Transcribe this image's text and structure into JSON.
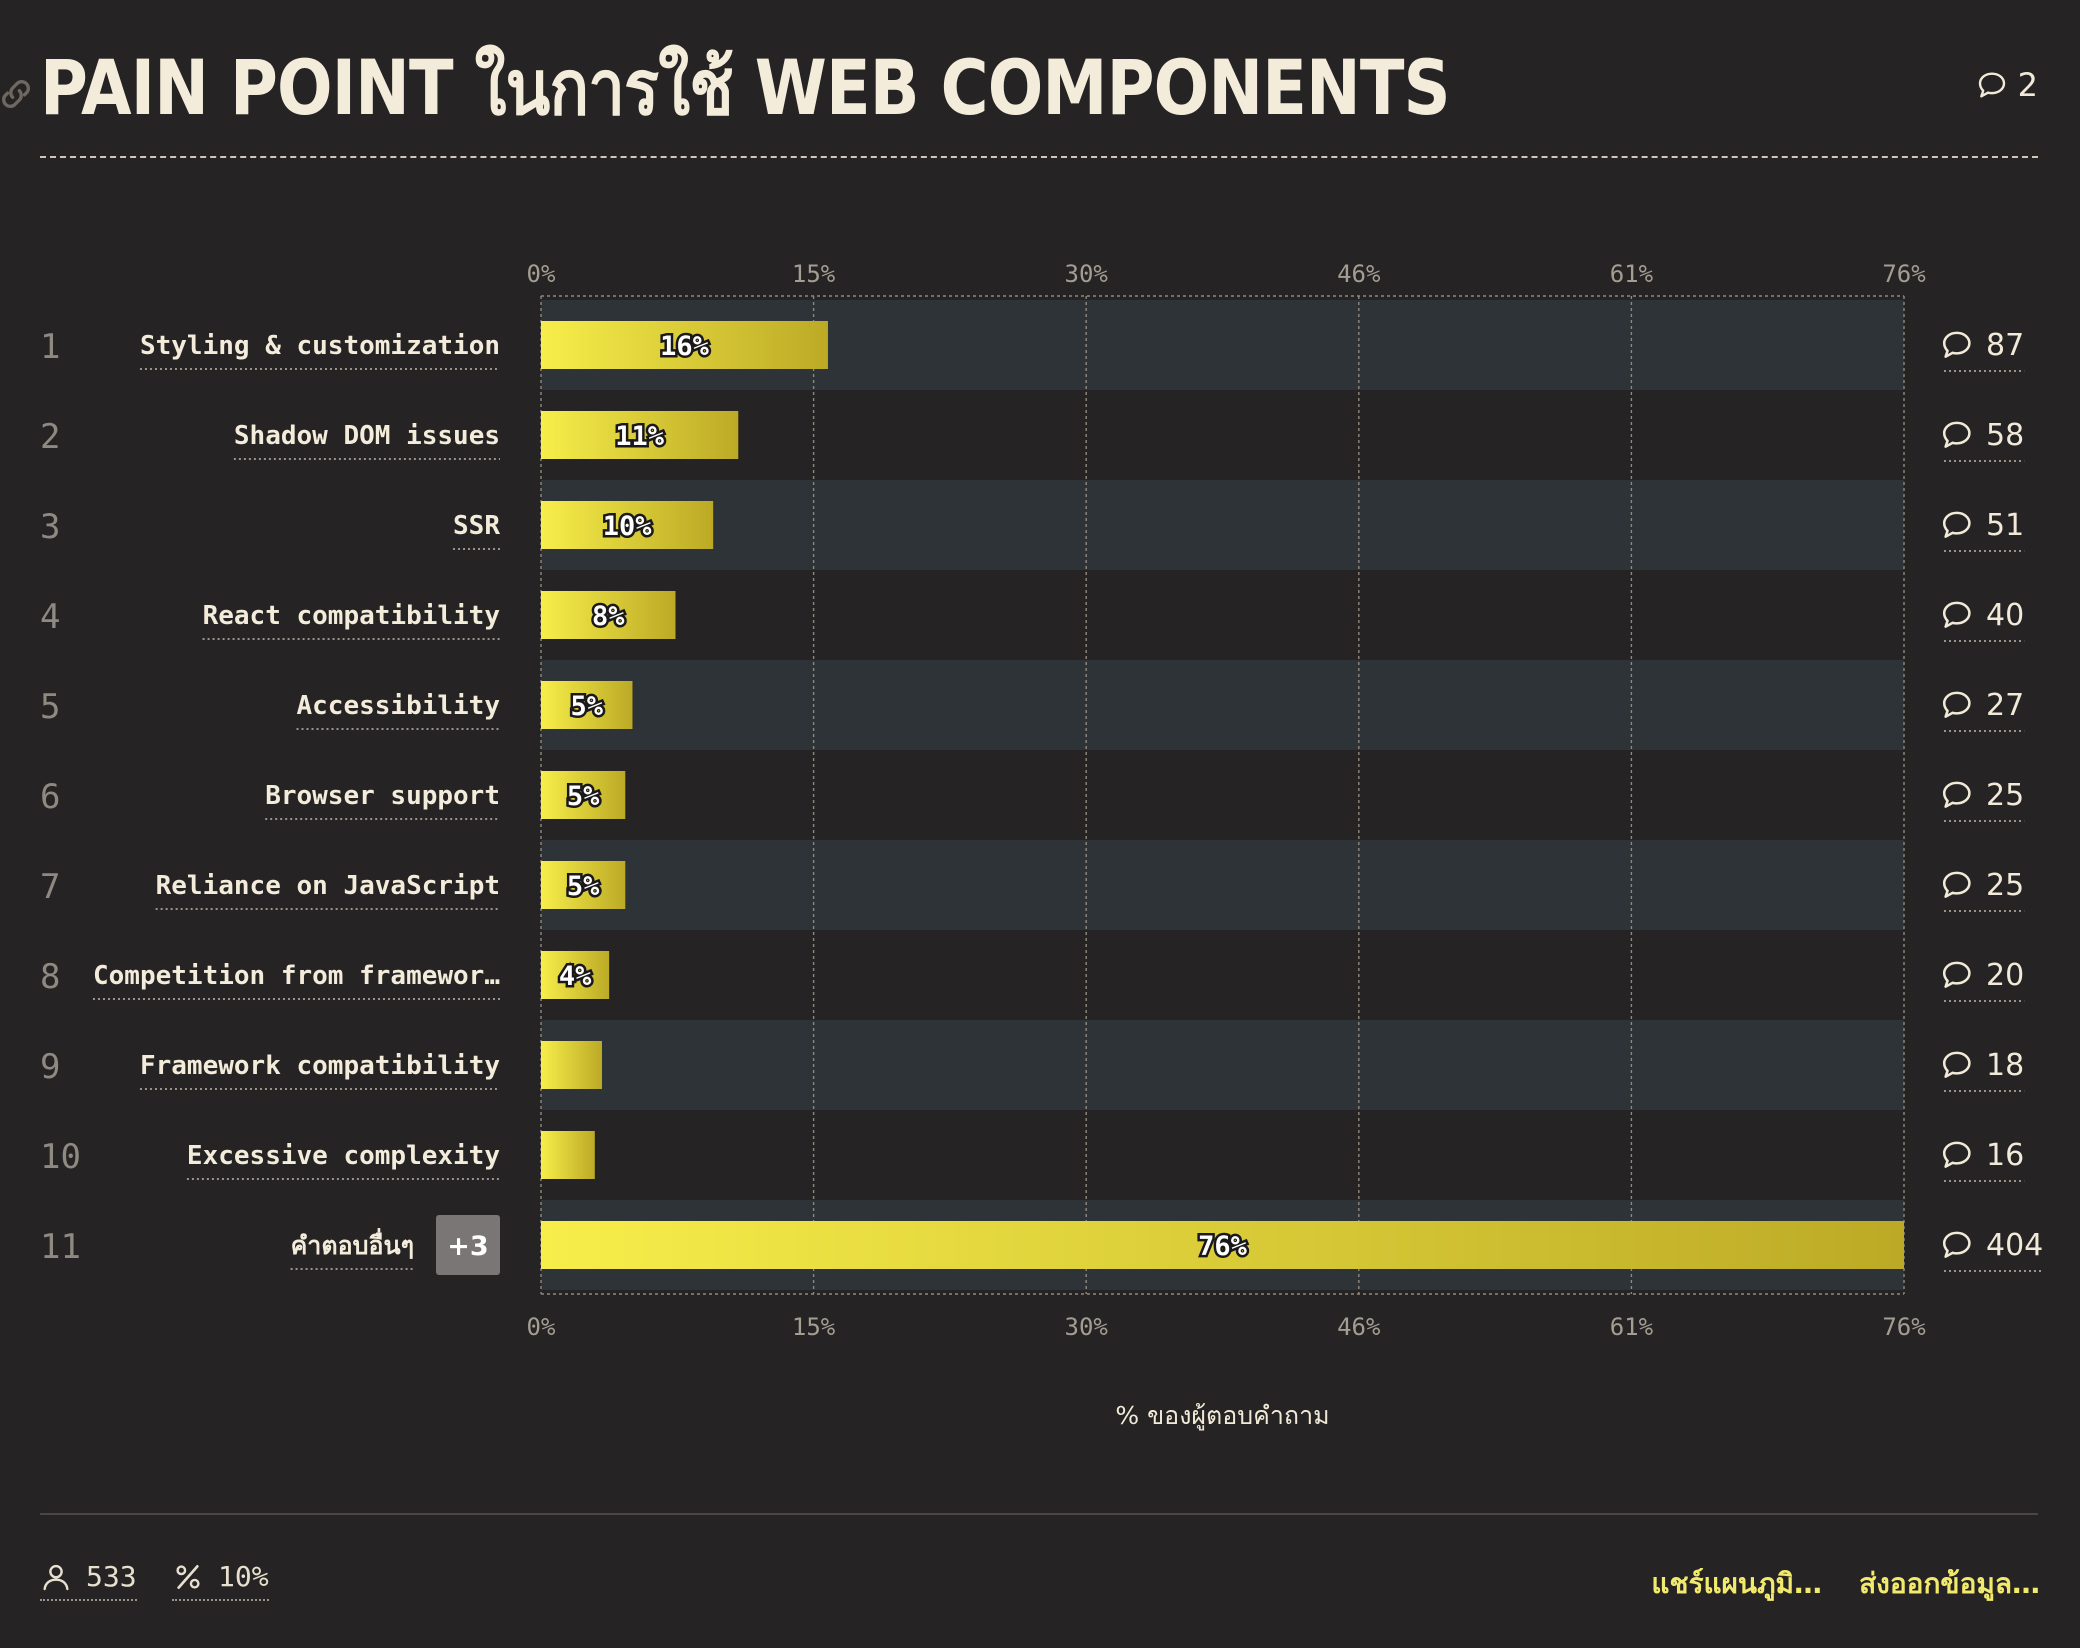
{
  "header": {
    "title": "PAIN POINT ในการใช้ WEB COMPONENTS",
    "comment_count": "2"
  },
  "chart_data": {
    "type": "bar",
    "orientation": "horizontal",
    "xlabel": "% ของผู้ตอบคำถาม",
    "xlim": [
      0,
      76
    ],
    "ticks": [
      "0%",
      "15%",
      "30%",
      "46%",
      "61%",
      "76%"
    ],
    "grid": true,
    "rows": [
      {
        "rank": "1",
        "label": "Styling & customization",
        "value": 16,
        "value_label": "16%",
        "comments": "87"
      },
      {
        "rank": "2",
        "label": "Shadow DOM issues",
        "value": 11,
        "value_label": "11%",
        "comments": "58"
      },
      {
        "rank": "3",
        "label": "SSR",
        "value": 9.6,
        "value_label": "10%",
        "comments": "51"
      },
      {
        "rank": "4",
        "label": "React compatibility",
        "value": 7.5,
        "value_label": "8%",
        "comments": "40"
      },
      {
        "rank": "5",
        "label": "Accessibility",
        "value": 5.1,
        "value_label": "5%",
        "comments": "27"
      },
      {
        "rank": "6",
        "label": "Browser support",
        "value": 4.7,
        "value_label": "5%",
        "comments": "25"
      },
      {
        "rank": "7",
        "label": "Reliance on JavaScript",
        "value": 4.7,
        "value_label": "5%",
        "comments": "25"
      },
      {
        "rank": "8",
        "label": "Competition from framewor…",
        "value": 3.8,
        "value_label": "4%",
        "comments": "20"
      },
      {
        "rank": "9",
        "label": "Framework compatibility",
        "value": 3.4,
        "value_label": "",
        "comments": "18"
      },
      {
        "rank": "10",
        "label": "Excessive complexity",
        "value": 3.0,
        "value_label": "",
        "comments": "16"
      },
      {
        "rank": "11",
        "label": "คำตอบอื่นๆ",
        "badge": "+3",
        "value": 76,
        "value_label": "76%",
        "comments": "404"
      }
    ]
  },
  "footer": {
    "respondents": "533",
    "percent": "10%",
    "share_label": "แชร์แผนภูมิ…",
    "export_label": "ส่งออกข้อมูล…"
  },
  "colors": {
    "bar_start": "#f7ee4a",
    "bar_end": "#bcaa26",
    "row_alt": "#2d3336",
    "background": "#262324"
  }
}
